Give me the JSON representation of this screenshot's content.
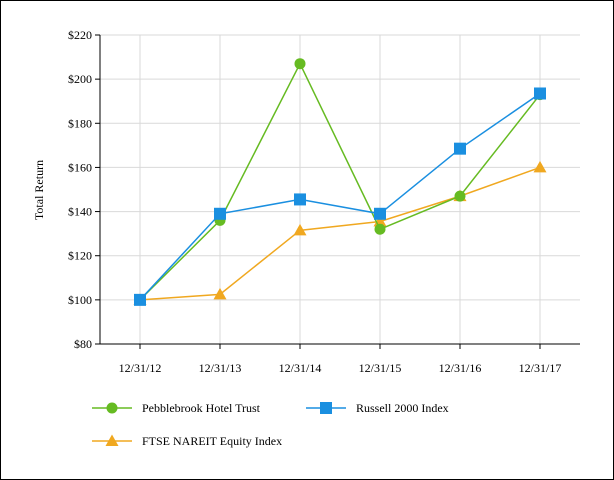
{
  "chart_data": {
    "type": "line",
    "title": "",
    "xlabel": "",
    "ylabel": "Total Return",
    "ylim": [
      80,
      220
    ],
    "yticks": [
      80,
      100,
      120,
      140,
      160,
      180,
      200,
      220
    ],
    "ytick_labels": [
      "$80",
      "$100",
      "$120",
      "$140",
      "$160",
      "$180",
      "$200",
      "$220"
    ],
    "categories": [
      "12/31/12",
      "12/31/13",
      "12/31/14",
      "12/31/15",
      "12/31/16",
      "12/31/17"
    ],
    "grid": true,
    "legend_position": "bottom",
    "series": [
      {
        "name": "Pebblebrook Hotel Trust",
        "values": [
          100,
          136,
          207,
          132,
          147,
          193
        ],
        "color": "#66bb22",
        "marker": "circle"
      },
      {
        "name": "Russell 2000 Index",
        "values": [
          100,
          139,
          145.5,
          139,
          168.5,
          193.5
        ],
        "color": "#1a8fe0",
        "marker": "square"
      },
      {
        "name": "FTSE NAREIT Equity Index",
        "values": [
          100,
          102.5,
          131.5,
          135.5,
          147,
          160
        ],
        "color": "#f0a820",
        "marker": "triangle"
      }
    ]
  }
}
